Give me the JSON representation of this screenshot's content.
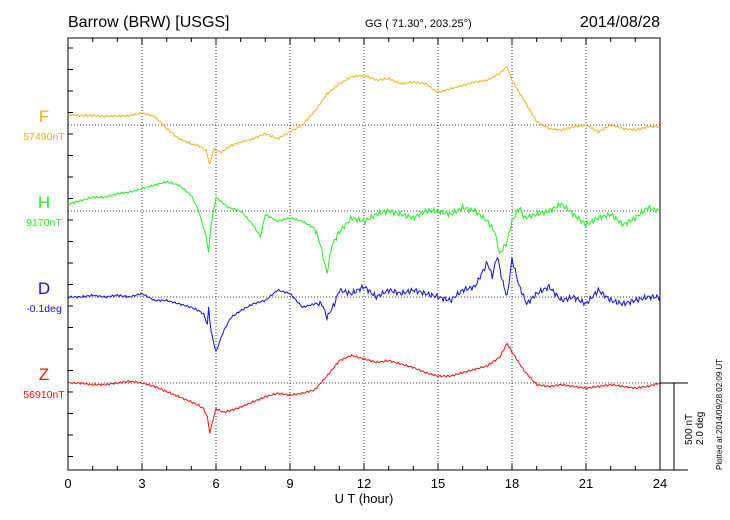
{
  "header": {
    "station": "Barrow (BRW)  [USGS]",
    "coords": "GG ( 71.30°, 203.25°)",
    "date": "2014/08/28"
  },
  "footer": {
    "plotted": "Plotted at 2014/09/28 02:09 UT",
    "scale_nt": "500 nT",
    "scale_deg": "2.0 deg"
  },
  "colors": {
    "F": "#f0b020",
    "H": "#22ee22",
    "D": "#1010d8",
    "Z": "#ee1111"
  },
  "chart_data": {
    "type": "line",
    "title": "Barrow (BRW)  [USGS]",
    "xlabel": "U T (hour)",
    "ylabel": "",
    "xlim": [
      0,
      24
    ],
    "xticks": [
      0,
      3,
      6,
      9,
      12,
      15,
      18,
      21,
      24
    ],
    "grid": true,
    "units_per_tick": 250,
    "series": [
      {
        "name": "F",
        "baseline": "57490nT",
        "x": [
          0,
          0.5,
          1,
          1.5,
          2,
          2.5,
          3,
          3.5,
          4,
          4.5,
          5,
          5.3,
          5.6,
          5.75,
          5.9,
          6.2,
          6.6,
          7,
          7.5,
          8,
          8.5,
          9,
          9.5,
          10,
          10.5,
          11,
          11.5,
          12,
          12.5,
          13,
          13.5,
          14,
          14.5,
          15,
          15.5,
          16,
          16.5,
          17,
          17.5,
          17.8,
          18,
          18.5,
          19,
          19.5,
          20,
          20.5,
          21,
          21.5,
          22,
          22.5,
          23,
          23.5,
          24
        ],
        "values": [
          60,
          55,
          55,
          50,
          52,
          55,
          70,
          50,
          -20,
          -80,
          -110,
          -120,
          -150,
          -230,
          -140,
          -160,
          -120,
          -100,
          -80,
          -50,
          -80,
          -40,
          0,
          80,
          180,
          240,
          280,
          290,
          260,
          270,
          240,
          250,
          240,
          190,
          210,
          230,
          250,
          260,
          300,
          340,
          260,
          140,
          20,
          -20,
          -30,
          -10,
          0,
          -40,
          0,
          -20,
          -30,
          -10,
          -10
        ]
      },
      {
        "name": "H",
        "baseline": "9170nT",
        "x": [
          0,
          0.5,
          1,
          1.5,
          2,
          2.5,
          3,
          3.5,
          4,
          4.5,
          5,
          5.3,
          5.6,
          5.7,
          5.8,
          6,
          6.5,
          7,
          7.5,
          7.8,
          8,
          8.5,
          9,
          9.5,
          10,
          10.2,
          10.4,
          10.5,
          10.7,
          11,
          11.5,
          12,
          12.5,
          13,
          13.5,
          14,
          14.5,
          15,
          15.5,
          16,
          16.5,
          17,
          17.3,
          17.5,
          17.8,
          18,
          18.3,
          18.5,
          19,
          19.5,
          20,
          20.5,
          21,
          21.5,
          22,
          22.5,
          23,
          23.5,
          24
        ],
        "values": [
          40,
          60,
          80,
          80,
          100,
          110,
          130,
          150,
          170,
          150,
          90,
          0,
          -150,
          -240,
          -80,
          80,
          20,
          0,
          -80,
          -150,
          -20,
          -60,
          -40,
          -60,
          -100,
          -180,
          -300,
          -360,
          -200,
          -120,
          -40,
          -60,
          -20,
          0,
          -20,
          -40,
          0,
          0,
          -20,
          20,
          0,
          -60,
          -120,
          -250,
          -180,
          -60,
          20,
          -40,
          -20,
          0,
          40,
          -20,
          -80,
          -40,
          -20,
          -80,
          -40,
          20,
          0
        ]
      },
      {
        "name": "D",
        "baseline": "-0.1deg",
        "x": [
          0,
          0.5,
          1,
          1.5,
          2,
          2.5,
          3,
          3.5,
          4,
          4.5,
          5,
          5.3,
          5.5,
          5.65,
          5.7,
          5.8,
          6,
          6.3,
          6.6,
          7,
          7.5,
          8,
          8.5,
          9,
          9.5,
          10,
          10.3,
          10.5,
          10.8,
          11,
          11.5,
          12,
          12.5,
          13,
          13.5,
          14,
          14.5,
          15,
          15.5,
          16,
          16.5,
          17,
          17.2,
          17.4,
          17.6,
          17.8,
          18,
          18.3,
          18.6,
          19,
          19.5,
          20,
          20.5,
          21,
          21.5,
          22,
          22.5,
          23,
          23.5,
          24
        ],
        "values": [
          0,
          0,
          10,
          0,
          10,
          0,
          20,
          -20,
          -20,
          -40,
          -60,
          -80,
          -100,
          -160,
          -60,
          -200,
          -320,
          -200,
          -120,
          -80,
          -40,
          -20,
          40,
          20,
          -60,
          -40,
          -40,
          -120,
          -40,
          40,
          20,
          60,
          0,
          40,
          20,
          40,
          20,
          0,
          -20,
          40,
          60,
          200,
          120,
          240,
          100,
          0,
          220,
          60,
          -40,
          20,
          60,
          -20,
          0,
          -40,
          40,
          -20,
          -40,
          -20,
          0,
          0
        ]
      },
      {
        "name": "Z",
        "baseline": "56910nT",
        "x": [
          0,
          0.5,
          1,
          1.5,
          2,
          2.5,
          3,
          3.5,
          4,
          4.5,
          5,
          5.3,
          5.5,
          5.65,
          5.75,
          5.85,
          6,
          6.3,
          6.6,
          7,
          7.5,
          8,
          8.5,
          9,
          9.5,
          10,
          10.5,
          11,
          11.5,
          12,
          12.5,
          13,
          13.5,
          14,
          14.5,
          15,
          15.5,
          16,
          16.5,
          17,
          17.5,
          17.8,
          18,
          18.5,
          19,
          19.5,
          20,
          20.5,
          21,
          21.5,
          22,
          22.5,
          23,
          23.5,
          24
        ],
        "values": [
          0,
          0,
          -10,
          -10,
          0,
          10,
          0,
          -20,
          -50,
          -80,
          -110,
          -130,
          -150,
          -200,
          -290,
          -230,
          -150,
          -170,
          -160,
          -140,
          -110,
          -80,
          -60,
          -70,
          -60,
          -40,
          40,
          130,
          160,
          140,
          120,
          130,
          110,
          90,
          60,
          40,
          40,
          60,
          80,
          100,
          150,
          230,
          180,
          70,
          -10,
          -20,
          -10,
          -20,
          -30,
          -20,
          -10,
          -20,
          -30,
          -20,
          0
        ]
      }
    ]
  }
}
